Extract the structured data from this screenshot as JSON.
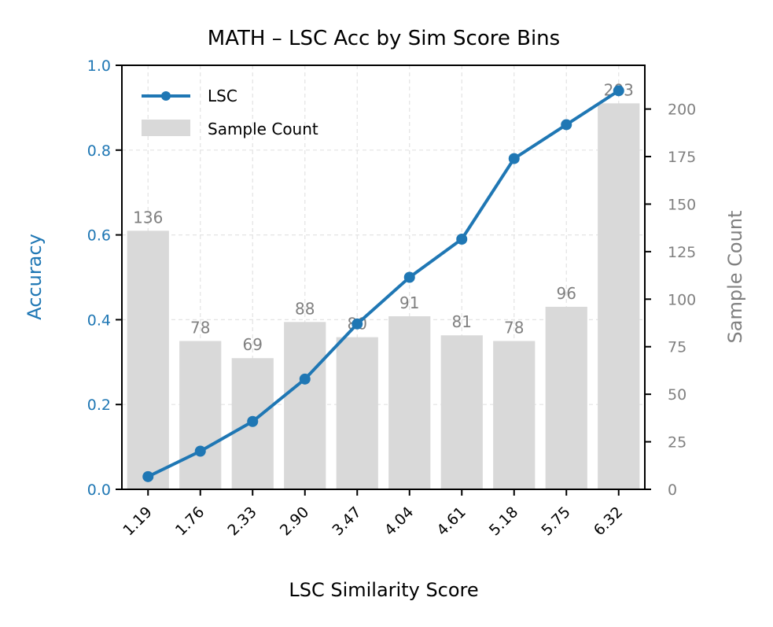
{
  "chart_data": {
    "type": "bar+line",
    "title": "MATH – LSC Acc by Sim Score Bins",
    "xlabel": "LSC Similarity Score",
    "ylabel_left": "Accuracy",
    "ylabel_right": "Sample Count",
    "categories": [
      "1.19",
      "1.76",
      "2.33",
      "2.90",
      "3.47",
      "4.04",
      "4.61",
      "5.18",
      "5.75",
      "6.32"
    ],
    "ylim_left": [
      0,
      1.0
    ],
    "ylim_right": [
      0,
      223
    ],
    "yticks_left": [
      "0.0",
      "0.2",
      "0.4",
      "0.6",
      "0.8",
      "1.0"
    ],
    "yticks_right": [
      "0",
      "25",
      "50",
      "75",
      "100",
      "125",
      "150",
      "175",
      "200"
    ],
    "grid": true,
    "legend_position": "top-left",
    "series": [
      {
        "name": "LSC",
        "type": "line",
        "axis": "left",
        "color": "#1f77b4",
        "values": [
          0.03,
          0.09,
          0.16,
          0.26,
          0.39,
          0.5,
          0.59,
          0.78,
          0.86,
          0.94
        ]
      },
      {
        "name": "Sample Count",
        "type": "bar",
        "axis": "right",
        "color": "#d9d9d9",
        "values": [
          136,
          78,
          69,
          88,
          80,
          91,
          81,
          78,
          96,
          203
        ],
        "labels": [
          "136",
          "78",
          "69",
          "88",
          "80",
          "91",
          "81",
          "78",
          "96",
          "203"
        ]
      }
    ]
  }
}
